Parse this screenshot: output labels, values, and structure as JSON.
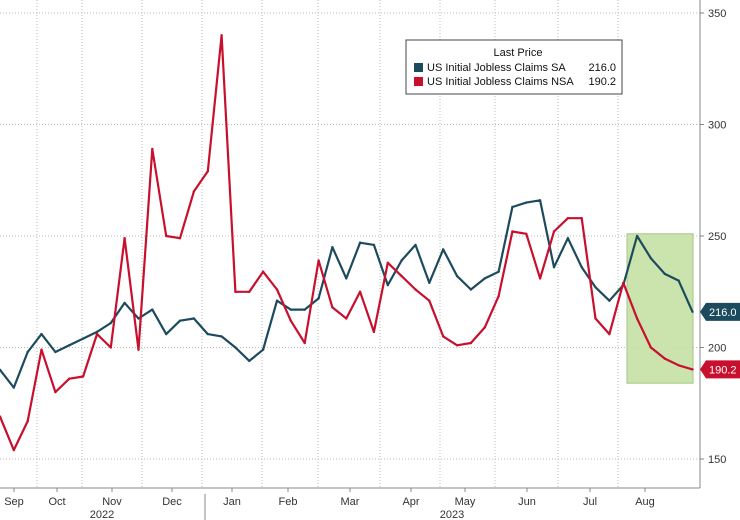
{
  "chart_data": {
    "type": "line",
    "title": "",
    "xlabel": "",
    "ylabel": "",
    "ylim": [
      135,
      350
    ],
    "yticks": [
      150,
      200,
      250,
      300,
      350
    ],
    "grid": true,
    "months": [
      "Sep",
      "Oct",
      "Nov",
      "Dec",
      "Jan",
      "Feb",
      "Mar",
      "Apr",
      "May",
      "Jun",
      "Jul",
      "Aug"
    ],
    "years": [
      "2022",
      "2023"
    ],
    "legend": {
      "title": "Last Price",
      "position": "top-center",
      "entries": [
        {
          "name": "US Initial Jobless Claims SA",
          "value": "216.0"
        },
        {
          "name": "US Initial Jobless Claims NSA",
          "value": "190.2"
        }
      ]
    },
    "series": [
      {
        "name": "US Initial Jobless Claims SA",
        "color": "#1d4b5e",
        "last_value": "216.0",
        "values": [
          190,
          182,
          198,
          206,
          198,
          201,
          204,
          207,
          211,
          220,
          213,
          217,
          206,
          212,
          213,
          206,
          205,
          200,
          194,
          199,
          221,
          217,
          217,
          222,
          245,
          231,
          247,
          246,
          228,
          239,
          246,
          229,
          244,
          232,
          226,
          231,
          234,
          263,
          265,
          266,
          236,
          249,
          236,
          227,
          221,
          228,
          250,
          240,
          233,
          230,
          216
        ]
      },
      {
        "name": "US Initial Jobless Claims NSA",
        "color": "#c8102e",
        "last_value": "190.2",
        "values": [
          169,
          154,
          167,
          199,
          180,
          186,
          187,
          206,
          200,
          249,
          199,
          289,
          250,
          249,
          270,
          279,
          340,
          225,
          225,
          234,
          226,
          212,
          202,
          239,
          218,
          213,
          225,
          207,
          238,
          232,
          226,
          221,
          205,
          201,
          202,
          209,
          223,
          252,
          251,
          231,
          252,
          258,
          258,
          213,
          206,
          229,
          213,
          200,
          195,
          192,
          190.2
        ]
      }
    ],
    "highlight": {
      "color": "#c6e0a4",
      "x_index_range": [
        45.9,
        50.9
      ],
      "y_range": [
        184,
        251
      ]
    }
  }
}
